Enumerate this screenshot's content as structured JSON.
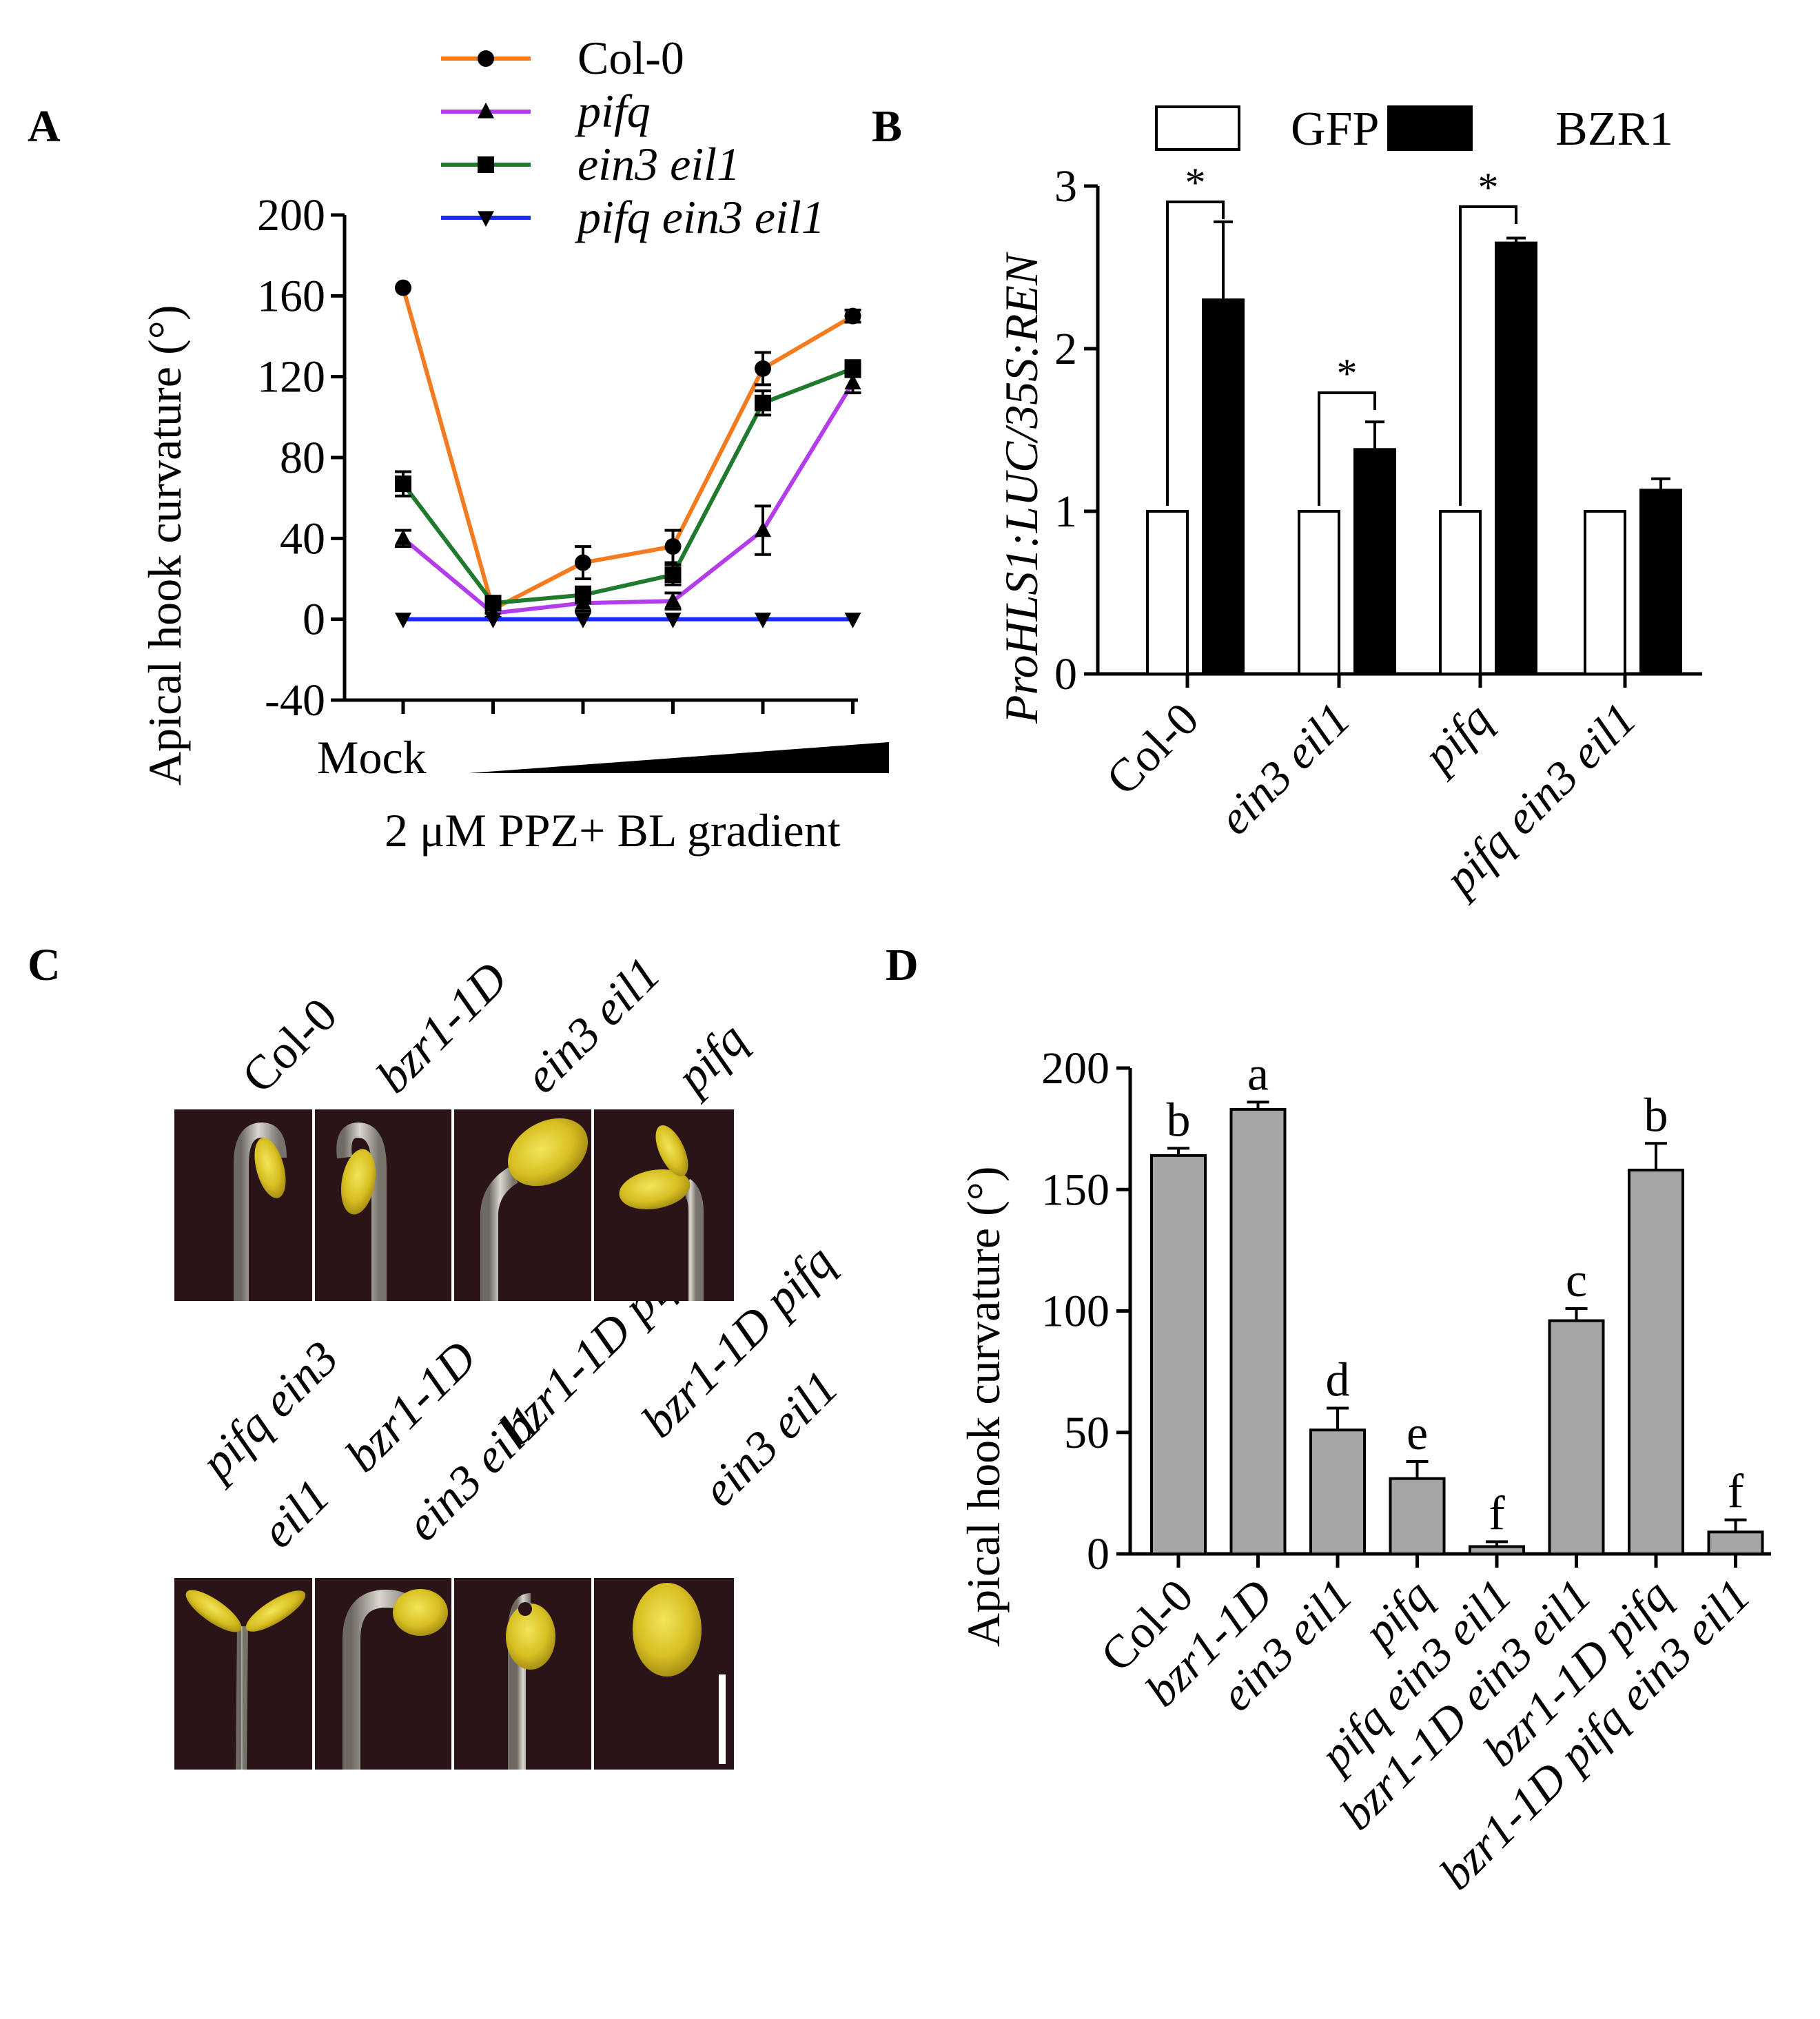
{
  "panels": {
    "a": "A",
    "b": "B",
    "c": "C",
    "d": "D"
  },
  "colors": {
    "col0": "#F47B20",
    "pifq": "#B33CEB",
    "ein3eil1": "#1F7A2E",
    "pifqein3eil1": "#1A2BF5",
    "bar_black": "#000000",
    "bar_white": "#FFFFFF",
    "bar_gray": "#A6A6A6"
  },
  "chart_data": [
    {
      "id": "A",
      "type": "line",
      "ylabel": "Apical hook curvature (°)",
      "xlabel": "2 μM PPZ+ BL gradient",
      "x_first_label": "Mock",
      "ylim": [
        -40,
        200
      ],
      "yticks": [
        "200",
        "160",
        "120",
        "80",
        "40",
        "0",
        "-40"
      ],
      "series": [
        {
          "name": "Col-0",
          "marker": "circle",
          "values": [
            164,
            5,
            28,
            36,
            124,
            150
          ],
          "errors": [
            0,
            2,
            8,
            8,
            8,
            3
          ]
        },
        {
          "name": "pifq",
          "marker": "triangle-up",
          "values": [
            40,
            3,
            8,
            9,
            44,
            117
          ],
          "errors": [
            4,
            2,
            4,
            4,
            12,
            5
          ]
        },
        {
          "name": "ein3 eil1",
          "marker": "square",
          "values": [
            67,
            8,
            12,
            22,
            107,
            124
          ],
          "errors": [
            6,
            2,
            4,
            5,
            6,
            4
          ]
        },
        {
          "name": "pifq ein3 eil1",
          "marker": "triangle-down",
          "values": [
            0,
            0,
            0,
            0,
            0,
            0
          ],
          "errors": [
            0,
            0,
            0,
            0,
            0,
            0
          ]
        }
      ]
    },
    {
      "id": "B",
      "type": "bar",
      "ylabel": "ProHLS1:LUC/35S:REN",
      "ylim": [
        0,
        3
      ],
      "yticks": [
        "3",
        "2",
        "1",
        "0"
      ],
      "categories": [
        "Col-0",
        "ein3 eil1",
        "pifq",
        "pifq ein3 eil1"
      ],
      "series": [
        {
          "name": "GFP",
          "values": [
            1,
            1,
            1,
            1
          ],
          "errors": [
            0,
            0,
            0,
            0
          ]
        },
        {
          "name": "BZR1",
          "values": [
            2.3,
            1.38,
            2.65,
            1.13
          ],
          "errors": [
            0.48,
            0.17,
            0.03,
            0.07
          ]
        }
      ],
      "significance": [
        "*",
        "*",
        "*",
        ""
      ]
    },
    {
      "id": "D",
      "type": "bar",
      "ylabel": "Apical hook curvature (°)",
      "ylim": [
        0,
        200
      ],
      "yticks": [
        "200",
        "150",
        "100",
        "50",
        "0"
      ],
      "categories": [
        "Col-0",
        "bzr1-1D",
        "ein3 eil1",
        "pifq",
        "pifq ein3 eil1",
        "bzr1-1D ein3 eil1",
        "bzr1-1D pifq",
        "bzr1-1D pifq ein3 eil1"
      ],
      "values": [
        164,
        183,
        51,
        31,
        3,
        96,
        158,
        9
      ],
      "errors": [
        3,
        3,
        9,
        7,
        2,
        5,
        11,
        5
      ],
      "letters": [
        "b",
        "a",
        "d",
        "e",
        "f",
        "c",
        "b",
        "f"
      ]
    }
  ],
  "photos": {
    "row1_labels": [
      "Col-0",
      "bzr1-1D",
      "ein3 eil1",
      "pifq"
    ],
    "row2_labels": [
      {
        "l1": "pifq  ein3",
        "l2": "eil1"
      },
      {
        "l1": "bzr1-1D",
        "l2": "ein3 eil1"
      },
      {
        "l1": "bzr1-1D pifq",
        "l2": ""
      },
      {
        "l1": "bzr1-1D pifq",
        "l2": "ein3 eil1"
      }
    ]
  }
}
